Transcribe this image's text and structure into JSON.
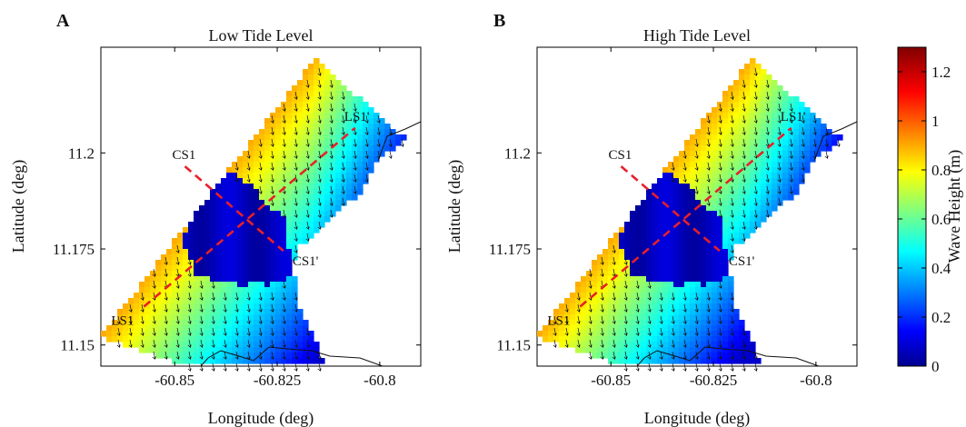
{
  "chart_data": [
    {
      "type": "heatmap",
      "panel_letter": "A",
      "title": "Low Tide Level",
      "xlabel": "Longitude (deg)",
      "ylabel": "Latitude (deg)",
      "xlim": [
        -60.868,
        -60.79
      ],
      "ylim": [
        11.1445,
        11.2275
      ],
      "xticks": [
        -60.85,
        -60.825,
        -60.8
      ],
      "xtick_labels": [
        "-60.85",
        "-60.825",
        "-60.8"
      ],
      "yticks": [
        11.15,
        11.175,
        11.2
      ],
      "ytick_labels": [
        "11.15",
        "11.175",
        "11.2"
      ],
      "transects": [
        {
          "start_label": "LS1",
          "end_label": "LS1'",
          "start": [
            -60.8575,
            11.16
          ],
          "end": [
            -60.806,
            11.2065
          ]
        },
        {
          "start_label": "CS1",
          "end_label": "CS1'",
          "start": [
            -60.8475,
            11.1965
          ],
          "end": [
            -60.8235,
            11.1745
          ]
        }
      ]
    },
    {
      "type": "heatmap",
      "panel_letter": "B",
      "title": "High Tide Level",
      "xlabel": "Longitude (deg)",
      "ylabel": "Latitude (deg)",
      "xlim": [
        -60.868,
        -60.79
      ],
      "ylim": [
        11.1445,
        11.2275
      ],
      "xticks": [
        -60.85,
        -60.825,
        -60.8
      ],
      "xtick_labels": [
        "-60.85",
        "-60.825",
        "-60.8"
      ],
      "yticks": [
        11.15,
        11.175,
        11.2
      ],
      "ytick_labels": [
        "11.15",
        "11.175",
        "11.2"
      ],
      "transects": [
        {
          "start_label": "LS1",
          "end_label": "LS1'",
          "start": [
            -60.8575,
            11.16
          ],
          "end": [
            -60.806,
            11.2065
          ]
        },
        {
          "start_label": "CS1",
          "end_label": "CS1'",
          "start": [
            -60.8475,
            11.1965
          ],
          "end": [
            -60.8235,
            11.1745
          ]
        }
      ]
    }
  ],
  "colorbar": {
    "label": "Wave Height (m)",
    "min": 0,
    "max": 1.3,
    "ticks": [
      0,
      0.2,
      0.4,
      0.6,
      0.8,
      1,
      1.2
    ],
    "tick_labels": [
      "0",
      "0.2",
      "0.4",
      "0.6",
      "0.8",
      "1",
      "1.2"
    ],
    "colormap": "jet"
  },
  "colors": {
    "transect": "#e8202a",
    "coastline": "#111111",
    "arrows": "#111111"
  }
}
